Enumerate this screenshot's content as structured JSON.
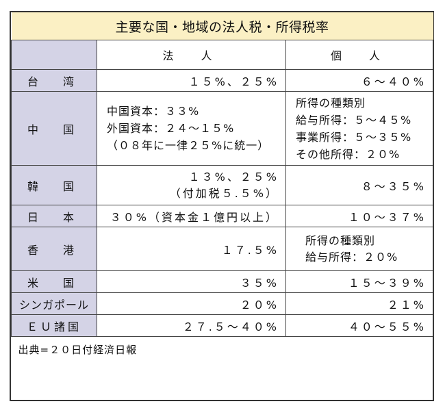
{
  "title": "主要な国・地域の法人税・所得税率",
  "headers": {
    "corporate": "法　人",
    "individual": "個　人"
  },
  "rows": [
    {
      "region": "台　湾",
      "corporate": [
        "１５%、２５%"
      ],
      "individual": [
        "６～４０%"
      ]
    },
    {
      "region": "中　国",
      "corporate": [
        "中国資本：３３%",
        "外国資本：２４～１５%",
        "（０８年に一律２５%に統一）"
      ],
      "individual": [
        "所得の種類別",
        "給与所得：５～４５%",
        "事業所得：５～３５%",
        "その他所得：２０%"
      ]
    },
    {
      "region": "韓　国",
      "corporate": [
        "１３%、２５%",
        "（付加税５.５%）"
      ],
      "individual": [
        "８～３５%"
      ]
    },
    {
      "region": "日　本",
      "corporate": [
        "３０%（資本金１億円以上）"
      ],
      "individual": [
        "１０～３７%"
      ]
    },
    {
      "region": "香　港",
      "corporate": [
        "１７.５%"
      ],
      "individual": [
        "所得の種類別",
        "給与所得：２０%"
      ]
    },
    {
      "region": "米　国",
      "corporate": [
        "３５%"
      ],
      "individual": [
        "１５～３９%"
      ]
    },
    {
      "region": "シンガポール",
      "corporate": [
        "２０%"
      ],
      "individual": [
        "２１%"
      ]
    },
    {
      "region": "ＥＵ諸国",
      "corporate": [
        "２７.５～４０%"
      ],
      "individual": [
        "４０～５５%"
      ]
    }
  ],
  "source": "出典=２０日付経済日報"
}
